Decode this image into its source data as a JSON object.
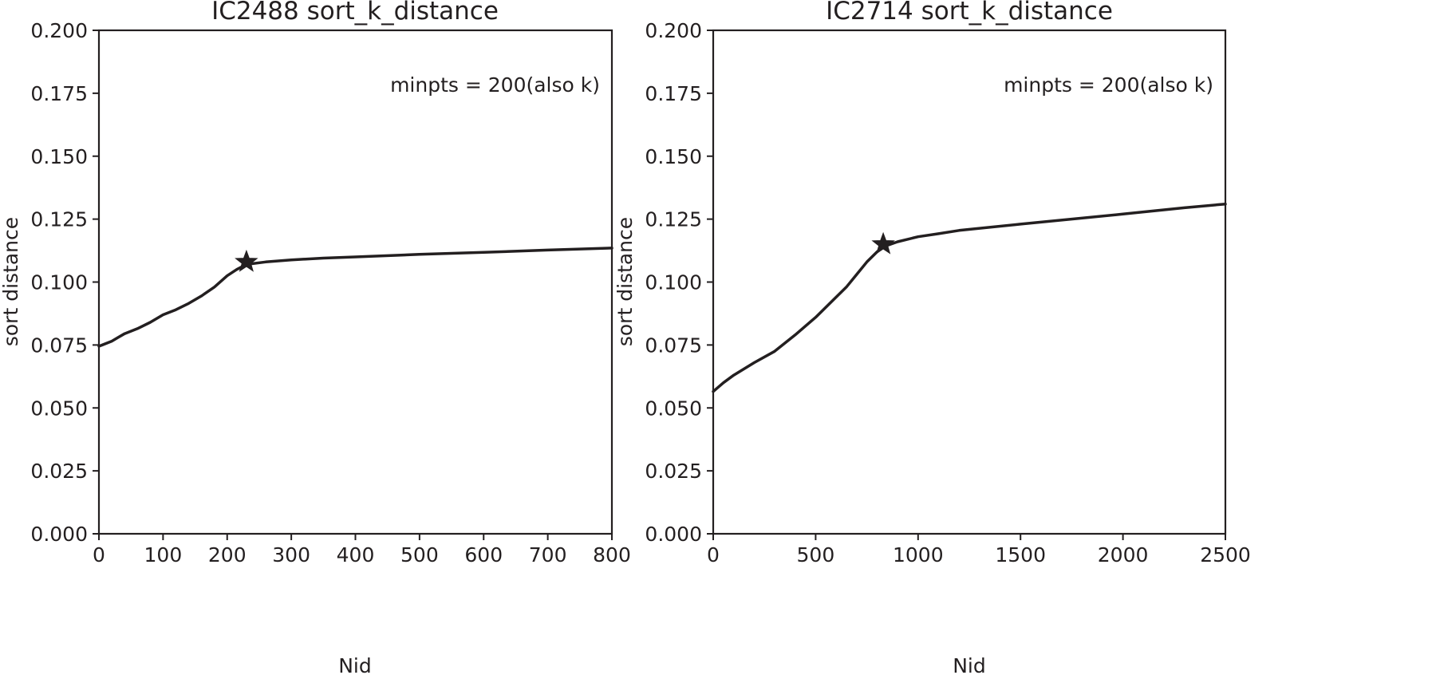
{
  "chart_data": [
    {
      "type": "line",
      "title": "IC2488 sort_k_distance",
      "xlabel": "Nid",
      "ylabel": "sort distance",
      "xlim": [
        0,
        800
      ],
      "ylim": [
        0.0,
        0.2
      ],
      "xticks": [
        0,
        100,
        200,
        300,
        400,
        500,
        600,
        700,
        800
      ],
      "yticks": [
        "0.000",
        "0.025",
        "0.050",
        "0.075",
        "0.100",
        "0.125",
        "0.150",
        "0.175",
        "0.200"
      ],
      "annotation": "minpts = 200(also k)",
      "grid": false,
      "series": [
        {
          "name": "sort_k_distance",
          "x": [
            0,
            20,
            30,
            40,
            60,
            80,
            100,
            120,
            140,
            160,
            180,
            200,
            215,
            230,
            260,
            300,
            350,
            400,
            500,
            600,
            700,
            800
          ],
          "values": [
            0.0745,
            0.0765,
            0.078,
            0.0795,
            0.0815,
            0.084,
            0.087,
            0.089,
            0.0915,
            0.0945,
            0.098,
            0.1025,
            0.105,
            0.107,
            0.108,
            0.1088,
            0.1095,
            0.11,
            0.111,
            0.1118,
            0.1127,
            0.1135
          ]
        }
      ],
      "marker": {
        "shape": "star",
        "x": 230,
        "y": 0.108
      }
    },
    {
      "type": "line",
      "title": "IC2714 sort_k_distance",
      "xlabel": "Nid",
      "ylabel": "sort distance",
      "xlim": [
        0,
        2500
      ],
      "ylim": [
        0.0,
        0.2
      ],
      "xticks": [
        0,
        500,
        1000,
        1500,
        2000,
        2500
      ],
      "yticks": [
        "0.000",
        "0.025",
        "0.050",
        "0.075",
        "0.100",
        "0.125",
        "0.150",
        "0.175",
        "0.200"
      ],
      "annotation": "minpts = 200(also k)",
      "grid": false,
      "series": [
        {
          "name": "sort_k_distance",
          "x": [
            0,
            50,
            100,
            200,
            300,
            400,
            500,
            600,
            650,
            700,
            750,
            800,
            830,
            900,
            1000,
            1100,
            1200,
            1500,
            2000,
            2300,
            2500
          ],
          "values": [
            0.0565,
            0.06,
            0.063,
            0.068,
            0.0725,
            0.079,
            0.086,
            0.094,
            0.098,
            0.103,
            0.108,
            0.112,
            0.114,
            0.116,
            0.118,
            0.1192,
            0.1205,
            0.123,
            0.127,
            0.1295,
            0.131
          ]
        }
      ],
      "marker": {
        "shape": "star",
        "x": 830,
        "y": 0.115
      }
    }
  ],
  "colors": {
    "line": "#231f20",
    "axis": "#231f20",
    "background": "#ffffff"
  },
  "panels": [
    {
      "title": "IC2488 sort_k_distance",
      "xlabel": "Nid",
      "ylabel": "sort distance",
      "annotation": "minpts = 200(also k)"
    },
    {
      "title": "IC2714 sort_k_distance",
      "xlabel": "Nid",
      "ylabel": "sort distance",
      "annotation": "minpts = 200(also k)"
    }
  ]
}
